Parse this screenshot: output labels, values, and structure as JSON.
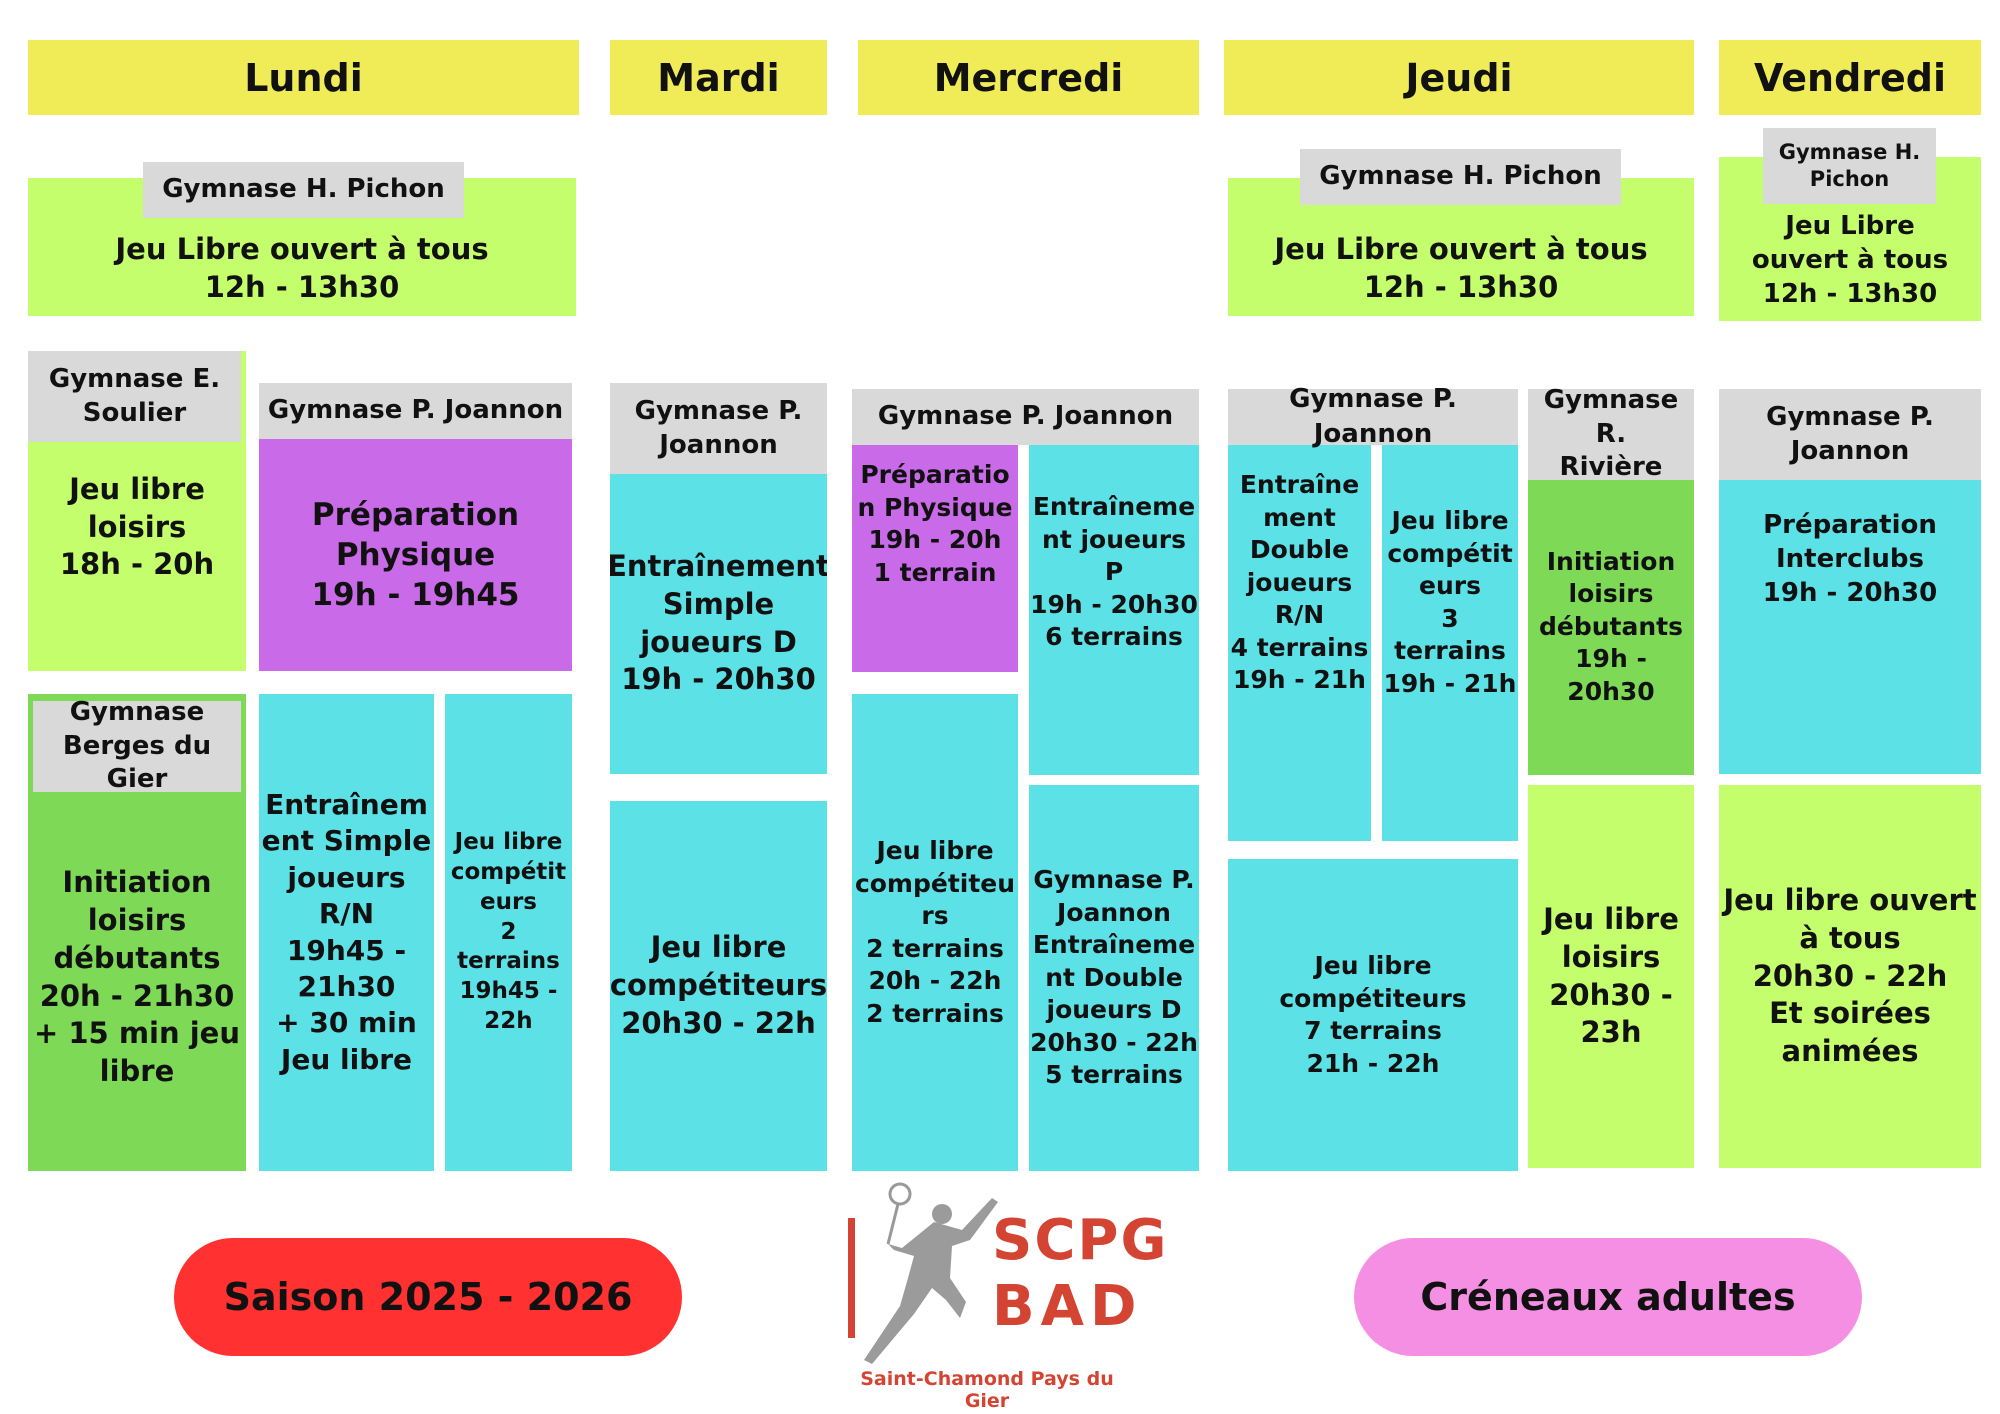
{
  "days": [
    "Lundi",
    "Mardi",
    "Mercredi",
    "Jeudi",
    "Vendredi"
  ],
  "colors": {
    "day": "#f0ec58",
    "lime": "#c4fe6c",
    "cyan": "#5ce1e6",
    "purple": "#c96ae8",
    "green": "#7ed957",
    "venue": "#d9d9d9",
    "season": "#ff3131",
    "adults": "#f58fe3",
    "logo": "#d44433"
  },
  "lundi": {
    "noon_venue": "Gymnase H. Pichon",
    "noon_text": "Jeu Libre ouvert à tous\n12h - 13h30",
    "soulier_venue": "Gymnase E.\nSoulier",
    "soulier_text": "Jeu libre\nloisirs\n18h - 20h",
    "joannon_venue": "Gymnase P. Joannon",
    "prep_text": "Préparation\nPhysique\n19h - 19h45",
    "berges_venue": "Gymnase\nBerges du Gier",
    "berges_text": "Initiation\nloisirs\ndébutants\n20h - 21h30\n+ 15 min jeu\nlibre",
    "simple_text": "Entraînem\nent Simple\njoueurs\nR/N\n19h45 -\n21h30\n+ 30 min\nJeu libre",
    "comp_text": "Jeu libre\ncompétit\neurs\n2\nterrains\n19h45 -\n22h"
  },
  "mardi": {
    "venue": "Gymnase P.\nJoannon",
    "simple_text": "Entraînement\nSimple\njoueurs D\n19h - 20h30",
    "comp_text": "Jeu libre\ncompétiteurs\n20h30 - 22h"
  },
  "mercredi": {
    "venue": "Gymnase P. Joannon",
    "prep_text": "Préparatio\nn Physique\n19h - 20h\n1 terrain",
    "p_text": "Entraîneme\nnt joueurs\nP\n19h - 20h30\n6 terrains",
    "comp_text": "Jeu libre\ncompétiteu\nrs\n2 terrains\n20h - 22h\n2 terrains",
    "double_text": "Gymnase P.\nJoannon\nEntraîneme\nnt Double\njoueurs D\n20h30 - 22h\n5 terrains"
  },
  "jeudi": {
    "noon_venue": "Gymnase H. Pichon",
    "noon_text": "Jeu Libre ouvert à tous\n12h - 13h30",
    "joannon_venue": "Gymnase P. Joannon",
    "double_text": "Entraîne\nment\nDouble\njoueurs\nR/N\n4 terrains\n19h - 21h",
    "comp3_text": "Jeu libre\ncompétit\neurs\n3\nterrains\n19h - 21h",
    "comp7_text": "Jeu libre\ncompétiteurs\n7 terrains\n21h - 22h",
    "riviere_venue": "Gymnase R.\nRivière",
    "init_text": "Initiation\nloisirs\ndébutants\n19h - 20h30",
    "loisirs_text": "Jeu libre\nloisirs\n20h30 -\n23h"
  },
  "vendredi": {
    "noon_venue": "Gymnase H.\nPichon",
    "noon_text": "Jeu Libre\nouvert à tous\n12h - 13h30",
    "joannon_venue": "Gymnase P.\nJoannon",
    "prep_text": "Préparation\nInterclubs\n19h - 20h30",
    "open_text": "Jeu libre ouvert\nà tous\n20h30 - 22h\nEt soirées\nanimées"
  },
  "footer": {
    "season": "Saison 2025 - 2026",
    "adults": "Créneaux adultes",
    "logo_line1": "SCPG",
    "logo_line2": "BAD",
    "logo_sub": "Saint-Chamond Pays du Gier"
  }
}
